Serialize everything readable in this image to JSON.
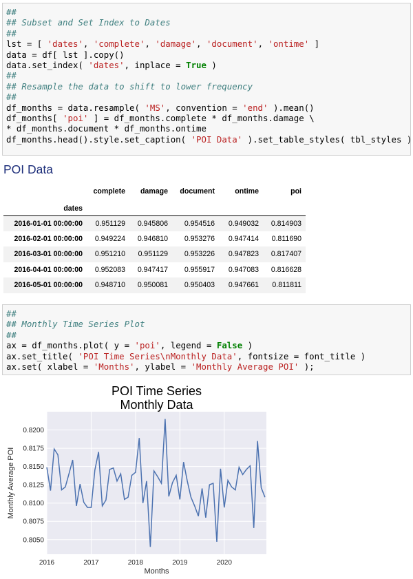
{
  "cell1": {
    "lines": [
      [
        {
          "t": "##",
          "c": "c"
        }
      ],
      [
        {
          "t": "## Subset and Set Index to Dates",
          "c": "c"
        }
      ],
      [
        {
          "t": "##",
          "c": "c"
        }
      ],
      [
        {
          "t": "lst = [ ",
          "c": "o"
        },
        {
          "t": "'dates'",
          "c": "s"
        },
        {
          "t": ", ",
          "c": "o"
        },
        {
          "t": "'complete'",
          "c": "s"
        },
        {
          "t": ", ",
          "c": "o"
        },
        {
          "t": "'damage'",
          "c": "s"
        },
        {
          "t": ", ",
          "c": "o"
        },
        {
          "t": "'document'",
          "c": "s"
        },
        {
          "t": ", ",
          "c": "o"
        },
        {
          "t": "'ontime'",
          "c": "s"
        },
        {
          "t": " ]",
          "c": "o"
        }
      ],
      [
        {
          "t": "data = df[ lst ].copy()",
          "c": "o"
        }
      ],
      [
        {
          "t": "data.set_index( ",
          "c": "o"
        },
        {
          "t": "'dates'",
          "c": "s"
        },
        {
          "t": ", inplace = ",
          "c": "o"
        },
        {
          "t": "True",
          "c": "k"
        },
        {
          "t": " )",
          "c": "o"
        }
      ],
      [
        {
          "t": "##",
          "c": "c"
        }
      ],
      [
        {
          "t": "## Resample the data to shift to lower frequency",
          "c": "c"
        }
      ],
      [
        {
          "t": "##",
          "c": "c"
        }
      ],
      [
        {
          "t": "df_months = data.resample( ",
          "c": "o"
        },
        {
          "t": "'MS'",
          "c": "s"
        },
        {
          "t": ", convention = ",
          "c": "o"
        },
        {
          "t": "'end'",
          "c": "s"
        },
        {
          "t": " ).mean()",
          "c": "o"
        }
      ],
      [
        {
          "t": "df_months[ ",
          "c": "o"
        },
        {
          "t": "'poi'",
          "c": "s"
        },
        {
          "t": " ] = df_months.complete * df_months.damage \\",
          "c": "o"
        }
      ],
      [
        {
          "t": "* df_months.document * df_months.ontime",
          "c": "o"
        }
      ],
      [
        {
          "t": "df_months.head().style.set_caption( ",
          "c": "o"
        },
        {
          "t": "'POI Data'",
          "c": "s"
        },
        {
          "t": " ).set_table_styles( tbl_styles )",
          "c": "o"
        }
      ]
    ]
  },
  "table": {
    "caption": "POI Data",
    "columns": [
      "complete",
      "damage",
      "document",
      "ontime",
      "poi"
    ],
    "index_name": "dates",
    "rows": [
      {
        "date": "2016-01-01 00:00:00",
        "v": [
          "0.951129",
          "0.945806",
          "0.954516",
          "0.949032",
          "0.814903"
        ]
      },
      {
        "date": "2016-02-01 00:00:00",
        "v": [
          "0.949224",
          "0.946810",
          "0.953276",
          "0.947414",
          "0.811690"
        ]
      },
      {
        "date": "2016-03-01 00:00:00",
        "v": [
          "0.951210",
          "0.951129",
          "0.953226",
          "0.947823",
          "0.817407"
        ]
      },
      {
        "date": "2016-04-01 00:00:00",
        "v": [
          "0.952083",
          "0.947417",
          "0.955917",
          "0.947083",
          "0.816628"
        ]
      },
      {
        "date": "2016-05-01 00:00:00",
        "v": [
          "0.948710",
          "0.950081",
          "0.950403",
          "0.947661",
          "0.811811"
        ]
      }
    ]
  },
  "cell2": {
    "lines": [
      [
        {
          "t": "##",
          "c": "c"
        }
      ],
      [
        {
          "t": "## Monthly Time Series Plot",
          "c": "c"
        }
      ],
      [
        {
          "t": "##",
          "c": "c"
        }
      ],
      [
        {
          "t": "ax = df_months.plot( y = ",
          "c": "o"
        },
        {
          "t": "'poi'",
          "c": "s"
        },
        {
          "t": ", legend = ",
          "c": "o"
        },
        {
          "t": "False",
          "c": "k"
        },
        {
          "t": " )",
          "c": "o"
        }
      ],
      [
        {
          "t": "ax.set_title( ",
          "c": "o"
        },
        {
          "t": "'POI Time Series\\nMonthly Data'",
          "c": "s"
        },
        {
          "t": ", fontsize = font_title )",
          "c": "o"
        }
      ],
      [
        {
          "t": "ax.set( xlabel = ",
          "c": "o"
        },
        {
          "t": "'Months'",
          "c": "s"
        },
        {
          "t": ", ylabel = ",
          "c": "o"
        },
        {
          "t": "'Monthly Average POI'",
          "c": "s"
        },
        {
          "t": " );",
          "c": "o"
        }
      ]
    ]
  },
  "chart_data": {
    "type": "line",
    "title": "POI Time Series\nMonthly Data",
    "xlabel": "Months",
    "ylabel": "Monthly Average POI",
    "x_start": 2016.0,
    "x_step_months": 1,
    "xlim": [
      2016.0,
      2020.95
    ],
    "ylim": [
      8.03,
      8.225
    ],
    "y_scale_note": "values x0.1",
    "xticks": [
      2016,
      2017,
      2018,
      2019,
      2020
    ],
    "xtick_labels": [
      "2016",
      "2017",
      "2018",
      "2019",
      "2020"
    ],
    "yticks": [
      8.05,
      8.075,
      8.1,
      8.125,
      8.15,
      8.175,
      8.2
    ],
    "ytick_labels": [
      "0.8050",
      "0.8075",
      "0.8100",
      "0.8125",
      "0.8150",
      "0.8175",
      "0.8200"
    ],
    "series": [
      {
        "color": "#4c72b0",
        "values": [
          0.8149,
          0.8117,
          0.8174,
          0.8166,
          0.8118,
          0.8122,
          0.814,
          0.8159,
          0.8096,
          0.8126,
          0.8101,
          0.8094,
          0.8094,
          0.8145,
          0.817,
          0.8096,
          0.8104,
          0.8146,
          0.8148,
          0.813,
          0.814,
          0.8105,
          0.8108,
          0.8138,
          0.8142,
          0.8189,
          0.81,
          0.813,
          0.804,
          0.8144,
          0.8136,
          0.8127,
          0.8215,
          0.8109,
          0.8128,
          0.8138,
          0.8105,
          0.8156,
          0.813,
          0.8108,
          0.8096,
          0.8082,
          0.812,
          0.808,
          0.8125,
          0.8127,
          0.8047,
          0.8147,
          0.8094,
          0.8131,
          0.8122,
          0.8118,
          0.8149,
          0.8139,
          0.8146,
          0.8151,
          0.8066,
          0.8185,
          0.8121,
          0.8108
        ]
      }
    ],
    "grid": true,
    "legend": "none"
  }
}
